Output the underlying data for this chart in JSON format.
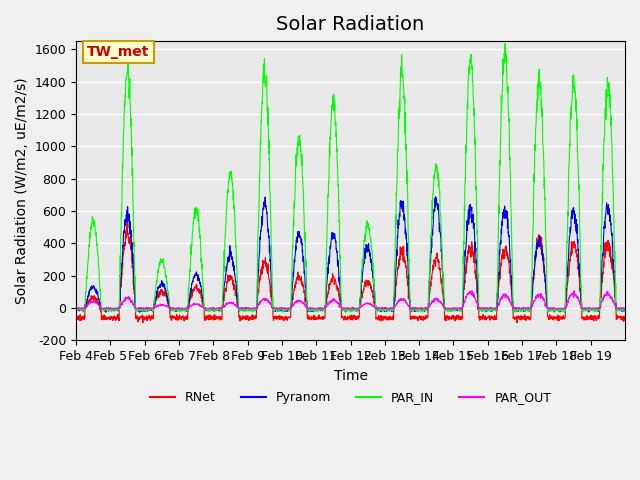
{
  "title": "Solar Radiation",
  "ylabel": "Solar Radiation (W/m2, uE/m2/s)",
  "xlabel": "Time",
  "ylim": [
    -200,
    1650
  ],
  "yticks": [
    -200,
    0,
    200,
    400,
    600,
    800,
    1000,
    1200,
    1400,
    1600
  ],
  "xtick_positions": [
    0,
    1,
    2,
    3,
    4,
    5,
    6,
    7,
    8,
    9,
    10,
    11,
    12,
    13,
    14,
    15
  ],
  "xtick_labels": [
    "Feb 4",
    "Feb 5",
    "Feb 6",
    "Feb 7",
    "Feb 8",
    "Feb 9",
    "Feb 10",
    "Feb 11",
    "Feb 12",
    "Feb 13",
    "Feb 14",
    "Feb 15",
    "Feb 16",
    "Feb 17",
    "Feb 18",
    "Feb 19"
  ],
  "n_days": 16,
  "pts_per_day": 144,
  "annotation_text": "TW_met",
  "annotation_bg": "#FFFFCC",
  "annotation_border": "#CC9900",
  "annotation_text_color": "#CC0000",
  "colors": {
    "RNet": "red",
    "Pyranom": "blue",
    "PAR_IN": "lime",
    "PAR_OUT": "magenta"
  },
  "plot_bg": "#E8E8E8",
  "grid_color": "white",
  "title_fontsize": 14,
  "label_fontsize": 10,
  "tick_fontsize": 9,
  "par_in_peaks": [
    540,
    1460,
    290,
    610,
    820,
    1450,
    1050,
    1290,
    510,
    1450,
    870,
    1530,
    1560,
    1400,
    1380,
    1380
  ],
  "pyranom_peaks": [
    130,
    580,
    150,
    210,
    330,
    650,
    460,
    450,
    380,
    650,
    650,
    630,
    610,
    420,
    600,
    620
  ],
  "rnet_peaks": [
    60,
    470,
    100,
    130,
    190,
    280,
    190,
    180,
    160,
    350,
    310,
    380,
    370,
    420,
    400,
    400
  ],
  "parout_peaks": [
    40,
    60,
    20,
    25,
    35,
    55,
    45,
    50,
    30,
    55,
    55,
    100,
    80,
    80,
    90,
    90
  ]
}
